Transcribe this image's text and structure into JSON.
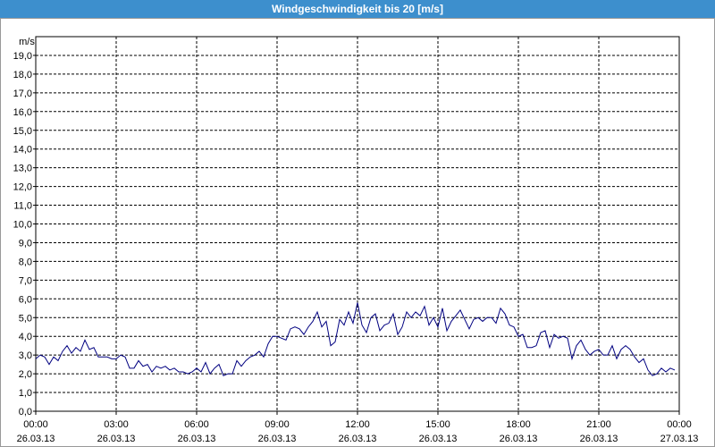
{
  "chart_data": {
    "type": "line",
    "title": "Windgeschwindigkeit bis 20 [m/s]",
    "y_label": "m/s",
    "xlim": [
      0,
      1440
    ],
    "ylim": [
      0,
      20
    ],
    "grid": true,
    "xticks": [
      {
        "value": 0,
        "label": "00:00 26.03.13"
      },
      {
        "value": 180,
        "label": "03:00 26.03.13"
      },
      {
        "value": 360,
        "label": "06:00 26.03.13"
      },
      {
        "value": 540,
        "label": "09:00 26.03.13"
      },
      {
        "value": 720,
        "label": "12:00 26.03.13"
      },
      {
        "value": 900,
        "label": "15:00 26.03.13"
      },
      {
        "value": 1080,
        "label": "18:00 26.03.13"
      },
      {
        "value": 1260,
        "label": "21:00 26.03.13"
      },
      {
        "value": 1440,
        "label": "00:00 27.03.13"
      }
    ],
    "yticks": [
      {
        "value": 0,
        "label": "0,0"
      },
      {
        "value": 1,
        "label": "1,0"
      },
      {
        "value": 2,
        "label": "2,0"
      },
      {
        "value": 3,
        "label": "3,0"
      },
      {
        "value": 4,
        "label": "4,0"
      },
      {
        "value": 5,
        "label": "5,0"
      },
      {
        "value": 6,
        "label": "6,0"
      },
      {
        "value": 7,
        "label": "7,0"
      },
      {
        "value": 8,
        "label": "8,0"
      },
      {
        "value": 9,
        "label": "9,0"
      },
      {
        "value": 10,
        "label": "10,0"
      },
      {
        "value": 11,
        "label": "11,0"
      },
      {
        "value": 12,
        "label": "12,0"
      },
      {
        "value": 13,
        "label": "13,0"
      },
      {
        "value": 14,
        "label": "14,0"
      },
      {
        "value": 15,
        "label": "15,0"
      },
      {
        "value": 16,
        "label": "16,0"
      },
      {
        "value": 17,
        "label": "17,0"
      },
      {
        "value": 18,
        "label": "18,0"
      },
      {
        "value": 19,
        "label": "19,0"
      }
    ],
    "x": [
      0,
      10,
      20,
      30,
      40,
      50,
      60,
      70,
      80,
      90,
      100,
      110,
      120,
      130,
      140,
      150,
      160,
      170,
      180,
      190,
      200,
      210,
      220,
      230,
      240,
      250,
      260,
      270,
      280,
      290,
      300,
      310,
      320,
      330,
      340,
      350,
      360,
      370,
      380,
      390,
      400,
      410,
      420,
      430,
      440,
      450,
      460,
      470,
      480,
      490,
      500,
      510,
      520,
      530,
      540,
      550,
      560,
      570,
      580,
      590,
      600,
      610,
      620,
      630,
      640,
      650,
      660,
      670,
      680,
      690,
      700,
      710,
      720,
      730,
      740,
      750,
      760,
      770,
      780,
      790,
      800,
      810,
      820,
      830,
      840,
      850,
      860,
      870,
      880,
      890,
      900,
      910,
      920,
      930,
      940,
      950,
      960,
      970,
      980,
      990,
      1000,
      1010,
      1020,
      1030,
      1040,
      1050,
      1060,
      1070,
      1080,
      1090,
      1100,
      1110,
      1120,
      1130,
      1140,
      1150,
      1160,
      1170,
      1180,
      1190,
      1200,
      1210,
      1220,
      1230,
      1240,
      1250,
      1260,
      1270,
      1280,
      1290,
      1300,
      1310,
      1320,
      1330,
      1340,
      1350,
      1360,
      1370,
      1380,
      1390,
      1400,
      1410,
      1420,
      1430
    ],
    "series": [
      {
        "color": "#000080",
        "values": [
          2.8,
          3.0,
          2.9,
          2.5,
          2.9,
          2.7,
          3.2,
          3.5,
          3.1,
          3.4,
          3.2,
          3.8,
          3.3,
          3.4,
          2.9,
          2.9,
          2.9,
          2.8,
          2.8,
          3.0,
          2.9,
          2.3,
          2.3,
          2.7,
          2.4,
          2.5,
          2.1,
          2.4,
          2.3,
          2.4,
          2.2,
          2.3,
          2.1,
          2.1,
          2.0,
          2.1,
          2.3,
          2.1,
          2.6,
          2.0,
          2.3,
          2.5,
          1.9,
          2.0,
          2.0,
          2.7,
          2.4,
          2.7,
          2.9,
          3.0,
          3.2,
          2.9,
          3.6,
          4.0,
          4.0,
          3.9,
          3.8,
          4.4,
          4.5,
          4.4,
          4.1,
          4.5,
          4.8,
          5.3,
          4.5,
          4.8,
          3.5,
          3.7,
          4.9,
          4.6,
          5.3,
          4.7,
          5.8,
          4.6,
          4.2,
          5.0,
          5.2,
          4.3,
          4.6,
          4.7,
          5.2,
          4.1,
          4.5,
          5.3,
          5.0,
          5.3,
          5.1,
          5.6,
          4.6,
          5.0,
          4.5,
          5.5,
          4.3,
          4.8,
          5.1,
          5.4,
          4.9,
          4.4,
          4.9,
          5.0,
          4.8,
          5.0,
          5.0,
          4.7,
          5.5,
          5.2,
          4.6,
          4.5,
          4.0,
          4.1,
          3.4,
          3.4,
          3.5,
          4.2,
          4.3,
          3.4,
          4.1,
          3.9,
          4.0,
          3.9,
          2.8,
          3.5,
          3.8,
          3.3,
          3.0,
          3.2,
          3.3,
          3.0,
          3.0,
          3.5,
          2.8,
          3.3,
          3.5,
          3.3,
          2.9,
          2.6,
          2.8,
          2.2,
          1.9,
          2.0,
          2.3,
          2.1,
          2.3,
          2.2
        ]
      }
    ]
  }
}
